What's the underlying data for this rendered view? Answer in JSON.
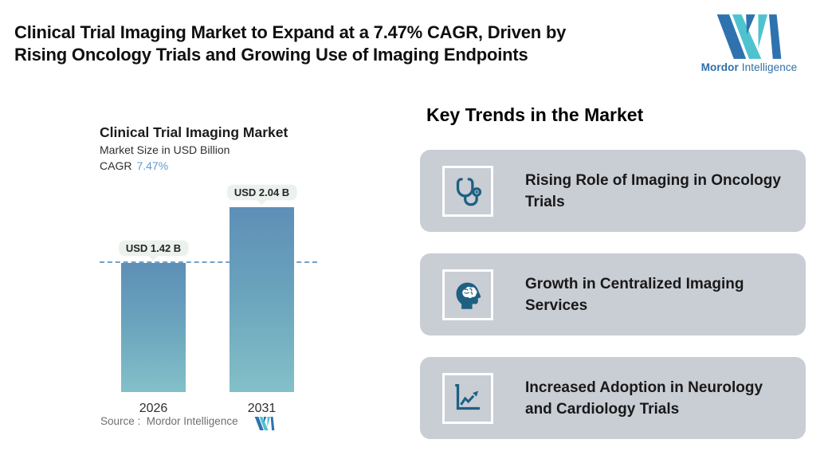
{
  "header": {
    "title_line1": "Clinical Trial Imaging Market to Expand at a 7.47% CAGR, Driven by",
    "title_line2": "Rising Oncology Trials and Growing Use of Imaging Endpoints",
    "brand": {
      "name_bold": "Mordor",
      "name_light": "Intelligence"
    }
  },
  "chart_data": {
    "type": "bar",
    "title": "Clinical Trial Imaging Market",
    "subtitle": "Market Size in USD Billion",
    "cagr_label": "CAGR",
    "cagr_value": "7.47%",
    "categories": [
      "2026",
      "2031"
    ],
    "values": [
      1.42,
      2.04
    ],
    "value_labels": [
      "USD 1.42 B",
      "USD 2.04 B"
    ],
    "unit": "USD Billion",
    "ylim": [
      0,
      2.3
    ],
    "grid": false,
    "legend": "none",
    "reference_line": {
      "value": 1.42,
      "style": "dashed"
    },
    "source": "Source :  Mordor Intelligence"
  },
  "trends": {
    "heading": "Key Trends in the Market",
    "items": [
      {
        "icon": "stethoscope-icon",
        "label": "Rising Role of Imaging in Oncology Trials"
      },
      {
        "icon": "brain-head-icon",
        "label": "Growth in Centralized Imaging Services"
      },
      {
        "icon": "growth-chart-icon",
        "label": "Increased Adoption in Neurology and Cardiology Trials"
      }
    ]
  },
  "colors": {
    "bar_top": "#5e8fb7",
    "bar_bottom": "#83c0c8",
    "accent_blue": "#5b9bd5",
    "dashed_line": "#74a3c7",
    "card_bg": "#c9cdd4",
    "icon_color": "#1d6082",
    "logo_blue": "#2e72b0",
    "logo_teal": "#4fc2d0",
    "tooltip_bg": "#ebf1ec"
  }
}
